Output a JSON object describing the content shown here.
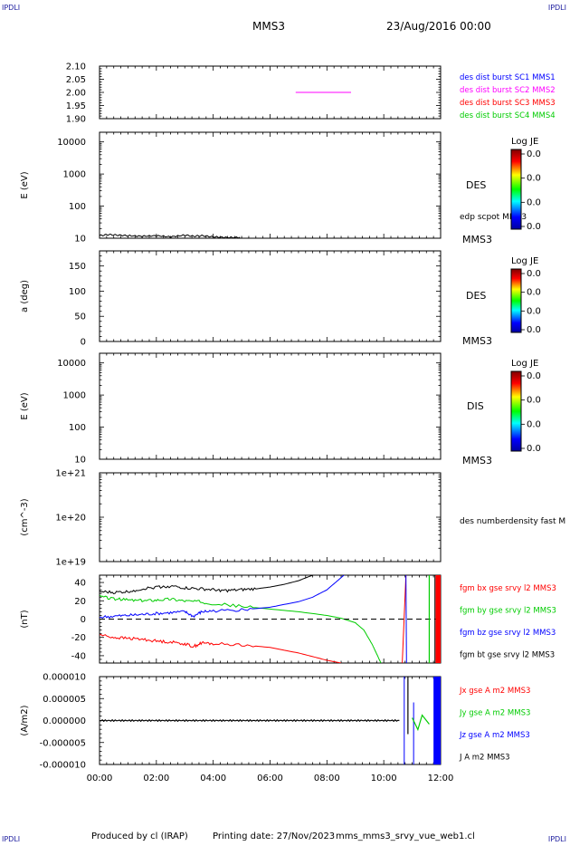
{
  "corners": {
    "top_left": "IPDLI",
    "top_right": "IPDLI",
    "bottom_left": "IPDLI",
    "bottom_right": "IPDLI"
  },
  "header": {
    "spacecraft": "MMS3",
    "date": "23/Aug/2016 00:00"
  },
  "footer": {
    "produced_by": "Produced by cl (IRAP)",
    "printing_date": "Printing date: 27/Nov/2023",
    "product": "mms_mms3_srvy_vue_web1.cl"
  },
  "colors": {
    "blue": "#0000ff",
    "magenta": "#ff00ff",
    "red": "#ff0000",
    "green": "#00cc00",
    "black": "#000000"
  },
  "time_axis": {
    "ticks": [
      "00:00",
      "02:00",
      "04:00",
      "06:00",
      "08:00",
      "10:00",
      "12:00"
    ],
    "range_hours": [
      0,
      12
    ]
  },
  "colorbars": [
    {
      "title": "Log JE",
      "ticks": [
        "0.0",
        "0.0",
        "0.0",
        "0.0"
      ]
    },
    {
      "title": "Log JE",
      "ticks": [
        "0.0",
        "0.0",
        "0.0",
        "0.0"
      ]
    },
    {
      "title": "Log JE",
      "ticks": [
        "0.0",
        "0.0",
        "0.0",
        "0.0"
      ]
    }
  ],
  "chart_data": [
    {
      "type": "line",
      "panel": "burst",
      "ylabel": "",
      "ylim": [
        1.9,
        2.1
      ],
      "yticks": [
        "2.10",
        "2.05",
        "2.00",
        "1.95",
        "1.90"
      ],
      "legend": [
        {
          "name": "des dist burst SC1 MMS1",
          "color": "#0000ff"
        },
        {
          "name": "des dist burst SC2 MMS2",
          "color": "#ff00ff"
        },
        {
          "name": "des dist burst SC3 MMS3",
          "color": "#ff0000"
        },
        {
          "name": "des dist burst SC4 MMS4",
          "color": "#00cc00"
        }
      ],
      "series": [
        {
          "color": "#ff00ff",
          "x": [
            6.9,
            8.85
          ],
          "values": [
            2.0,
            2.0
          ]
        }
      ]
    },
    {
      "type": "heatmap",
      "panel": "des-energy",
      "ylabel": "E (eV)",
      "scale": "log",
      "ylim": [
        10,
        20000
      ],
      "yticks": [
        "10000",
        "1000",
        "100",
        "10"
      ],
      "right_labels": [
        "DES",
        "edp scpot MMS3",
        "MMS3"
      ],
      "overlay": {
        "x": [
          0.0,
          0.3,
          0.6,
          1.0,
          1.5,
          2.0,
          2.5,
          3.0,
          3.3,
          3.6,
          4.0,
          4.5,
          5.0
        ],
        "values": [
          12,
          13,
          12.5,
          12,
          11.5,
          12,
          11,
          12.5,
          11.5,
          12,
          11,
          10.5,
          10.5
        ]
      }
    },
    {
      "type": "heatmap",
      "panel": "des-pitch",
      "ylabel": "a (deg)",
      "ylim": [
        0,
        180
      ],
      "yticks": [
        "150",
        "100",
        "50",
        "0"
      ],
      "right_labels": [
        "DES",
        "MMS3"
      ]
    },
    {
      "type": "heatmap",
      "panel": "dis-energy",
      "ylabel": "E (eV)",
      "scale": "log",
      "ylim": [
        10,
        20000
      ],
      "yticks": [
        "10000",
        "1000",
        "100",
        "10"
      ],
      "right_labels": [
        "DIS",
        "MMS3"
      ]
    },
    {
      "type": "line",
      "panel": "density",
      "ylabel": "(cm^-3)",
      "scale": "log",
      "ylim": [
        1e+19,
        1e+21
      ],
      "yticks": [
        "1e+21",
        "1e+20",
        "1e+19"
      ],
      "right_labels": [
        "des numberdensity fast M"
      ]
    },
    {
      "type": "line",
      "panel": "fgm",
      "ylabel": "(nT)",
      "ylim": [
        -48,
        48
      ],
      "yticks": [
        "40",
        "20",
        "0",
        "-20",
        "-40"
      ],
      "series": [
        {
          "name": "fgm bx gse srvy l2 MMS3",
          "color": "#ff0000",
          "x": [
            0,
            0.5,
            1.0,
            1.5,
            2.0,
            2.5,
            3.0,
            3.3,
            3.6,
            4.0,
            5.0,
            6.0,
            7.0,
            7.5,
            8.0,
            8.5
          ],
          "values": [
            -17,
            -20,
            -21,
            -22,
            -24,
            -25,
            -27,
            -30,
            -26,
            -27,
            -28,
            -31,
            -37,
            -41,
            -45,
            -48
          ]
        },
        {
          "name": "fgm by gse srvy l2 MMS3",
          "color": "#00cc00",
          "x": [
            0,
            0.5,
            1.0,
            1.5,
            2.0,
            2.5,
            3.0,
            3.5,
            4.0,
            5.0,
            6.0,
            7.0,
            8.0,
            8.5,
            9.0,
            9.3,
            9.6,
            9.9
          ],
          "values": [
            25,
            22,
            21,
            20,
            21,
            22,
            20,
            19,
            17,
            14,
            11,
            8,
            4,
            1,
            -4,
            -12,
            -28,
            -48
          ]
        },
        {
          "name": "fgm bz gse srvy l2 MMS3",
          "color": "#0000ff",
          "x": [
            0,
            0.5,
            1.0,
            1.5,
            2.0,
            2.5,
            3.0,
            3.3,
            3.6,
            4.0,
            5.0,
            6.0,
            7.0,
            7.5,
            8.0,
            8.3,
            8.6
          ],
          "values": [
            2,
            3,
            4,
            5,
            6,
            7,
            8,
            3,
            8,
            9,
            10,
            13,
            19,
            24,
            32,
            40,
            48
          ]
        },
        {
          "name": "fgm bt gse srvy l2 MMS3",
          "color": "#000000",
          "x": [
            0,
            0.5,
            1.0,
            1.5,
            2.0,
            2.5,
            3.0,
            3.5,
            4.0,
            4.5,
            5.0,
            5.5,
            6.0,
            6.5,
            7.0,
            7.5
          ],
          "values": [
            30,
            29,
            30,
            33,
            35,
            36,
            34,
            33,
            32,
            31,
            32,
            33,
            35,
            38,
            42,
            48
          ]
        }
      ]
    },
    {
      "type": "line",
      "panel": "current",
      "ylabel": "(A/m2)",
      "ylim": [
        -1e-05,
        1e-05
      ],
      "yticks": [
        "0.000010",
        "0.000005",
        "0.000000",
        "-0.000005",
        "-0.000010"
      ],
      "series": [
        {
          "name": "Jx gse A m2 MMS3",
          "color": "#ff0000"
        },
        {
          "name": "Jy gse A m2 MMS3",
          "color": "#00cc00"
        },
        {
          "name": "Jz gse A m2 MMS3",
          "color": "#0000ff"
        },
        {
          "name": "J A m2 MMS3",
          "color": "#000000"
        }
      ]
    }
  ]
}
